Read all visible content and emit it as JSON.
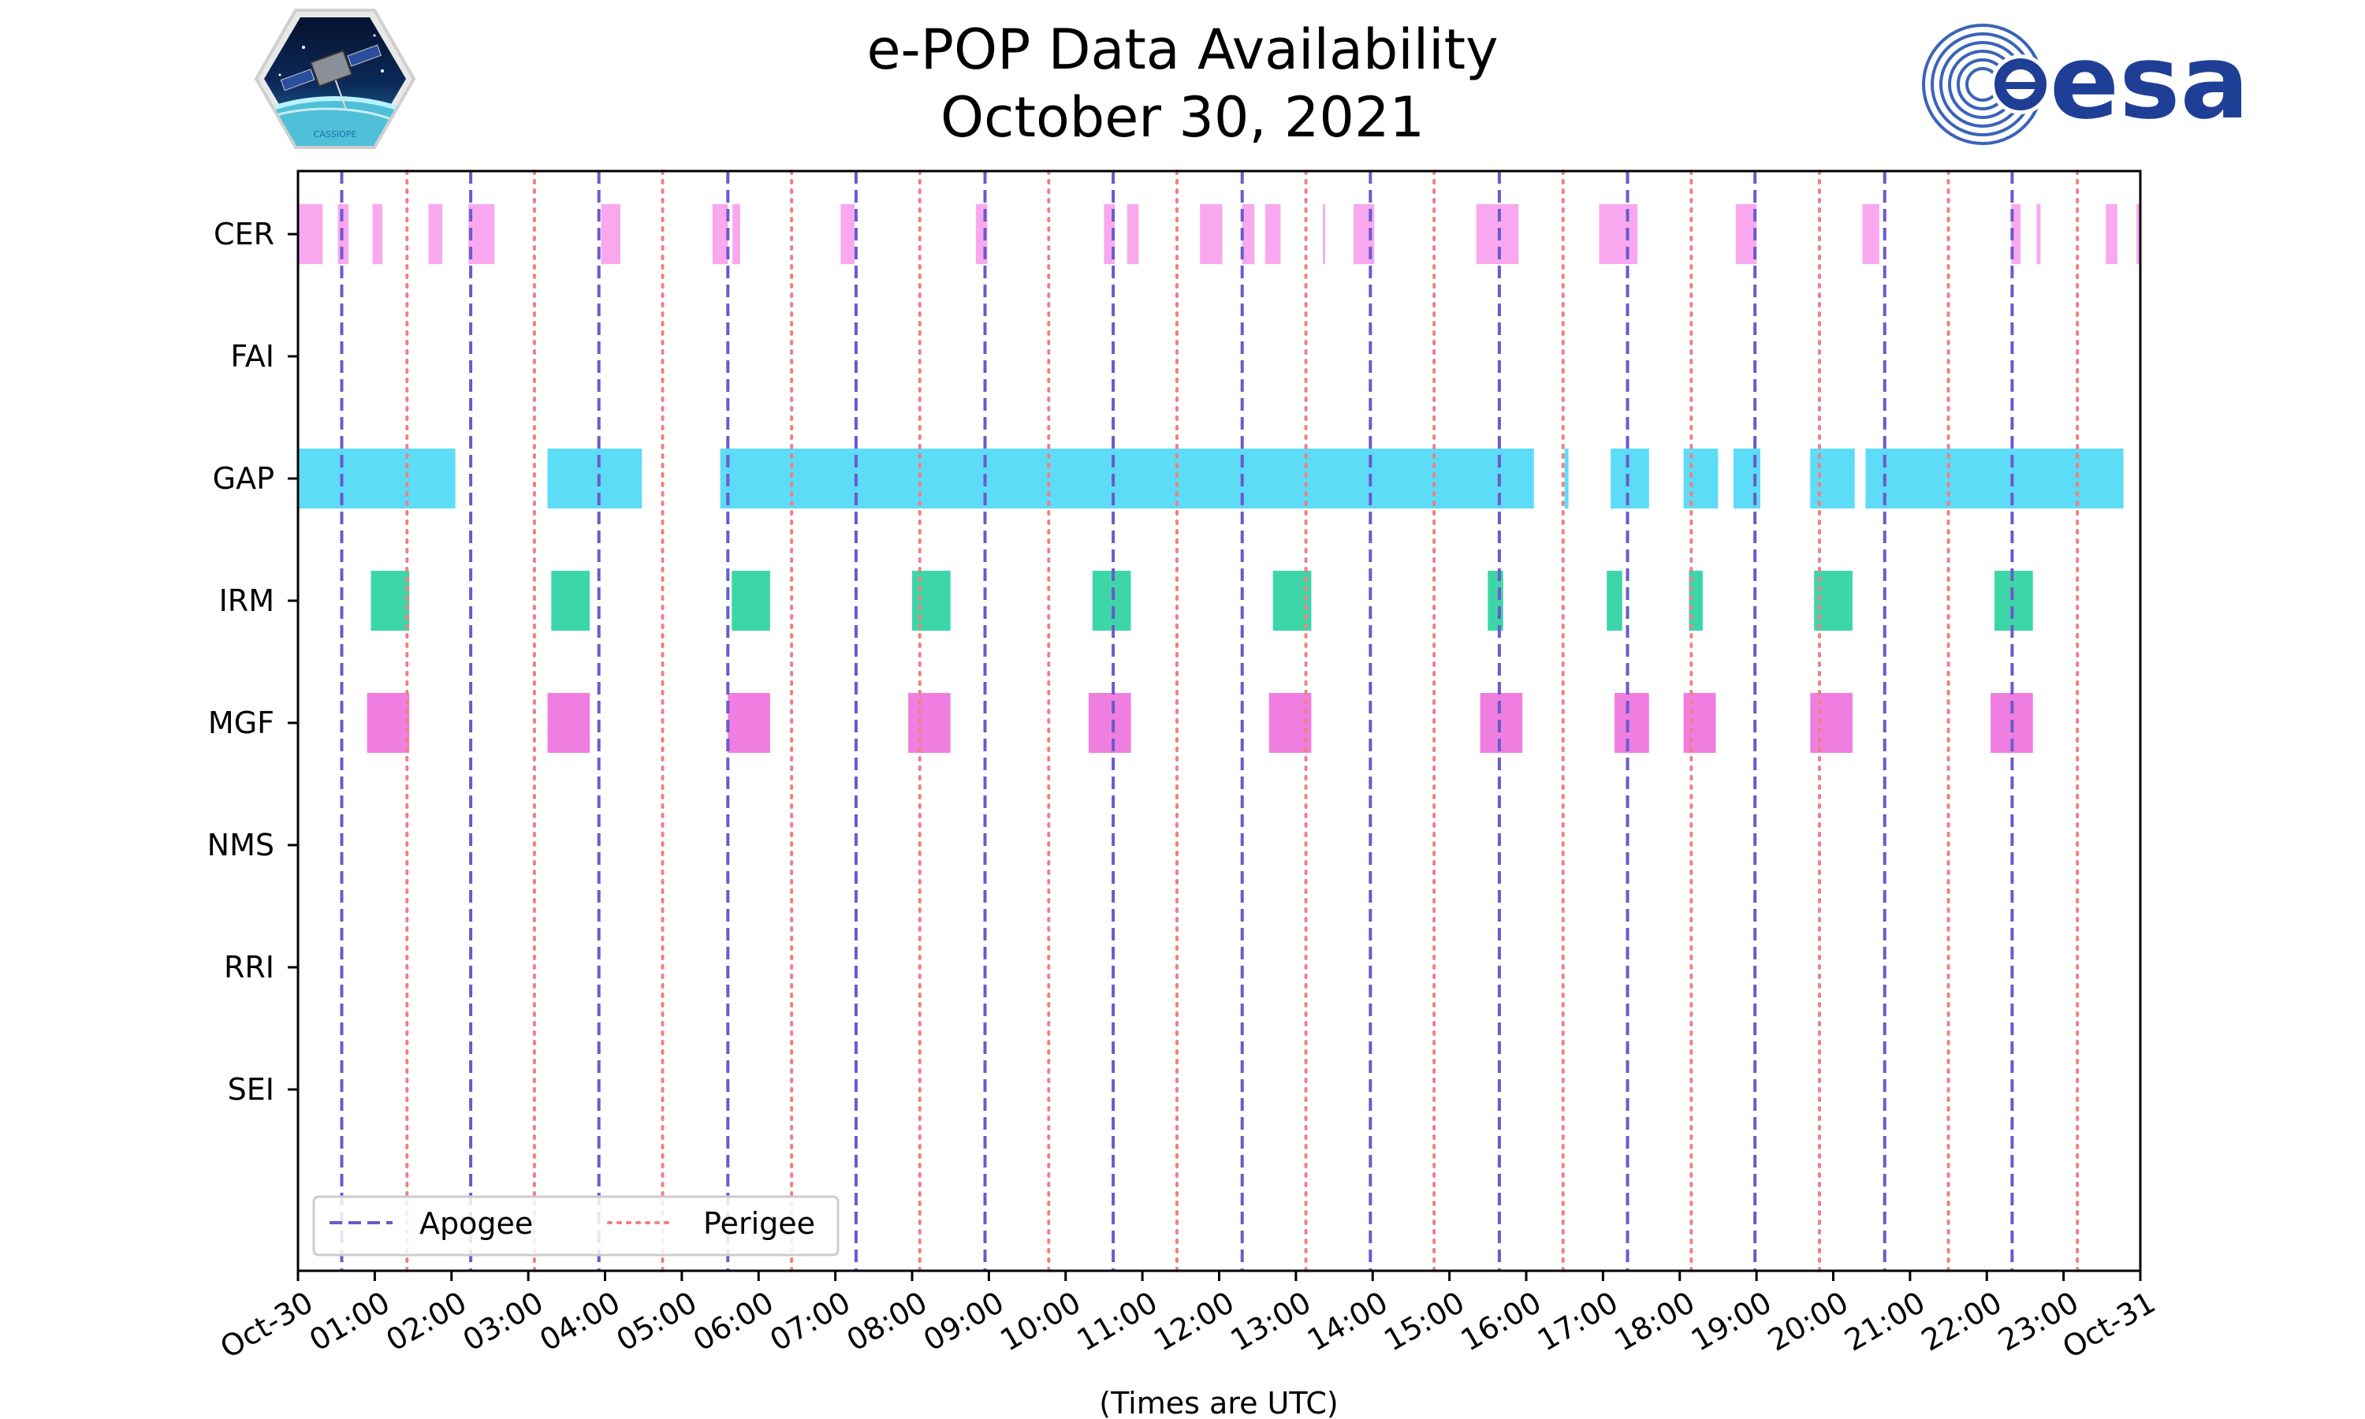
{
  "title": {
    "line1": "e-POP Data Availability",
    "line2": "October 30, 2021"
  },
  "logos": {
    "left": {
      "icon": "cassiope-mission-patch",
      "text": "CASSIOPE"
    },
    "right": {
      "icon": "esa-logo",
      "text": "esa"
    }
  },
  "colors": {
    "CER": "#f9a8f0",
    "GAP": "#5ddcf8",
    "IRM": "#3dd6a8",
    "MGF": "#f07ee0",
    "apogee": "#6a5acd",
    "perigee": "#f08080"
  },
  "chart_data": {
    "type": "timeline",
    "title": "e-POP Data Availability October 30, 2021",
    "xlabel": "(Times are UTC)",
    "ylabel": "",
    "xlim": [
      0,
      24
    ],
    "x_unit": "hours UTC",
    "x_tick_labels": [
      "Oct-30",
      "01:00",
      "02:00",
      "03:00",
      "04:00",
      "05:00",
      "06:00",
      "07:00",
      "08:00",
      "09:00",
      "10:00",
      "11:00",
      "12:00",
      "13:00",
      "14:00",
      "15:00",
      "16:00",
      "17:00",
      "18:00",
      "19:00",
      "20:00",
      "21:00",
      "22:00",
      "23:00",
      "Oct-31"
    ],
    "instruments": [
      "CER",
      "FAI",
      "GAP",
      "IRM",
      "MGF",
      "NMS",
      "RRI",
      "SEI"
    ],
    "series": [
      {
        "name": "CER",
        "intervals": [
          [
            0.0,
            0.32
          ],
          [
            0.52,
            0.66
          ],
          [
            0.97,
            1.1
          ],
          [
            1.7,
            1.88
          ],
          [
            2.22,
            2.56
          ],
          [
            3.95,
            4.2
          ],
          [
            5.4,
            5.6
          ],
          [
            5.66,
            5.76
          ],
          [
            7.07,
            7.25
          ],
          [
            8.83,
            8.98
          ],
          [
            10.5,
            10.64
          ],
          [
            10.8,
            10.95
          ],
          [
            11.75,
            12.04
          ],
          [
            12.3,
            12.46
          ],
          [
            12.6,
            12.8
          ],
          [
            13.35,
            13.38
          ],
          [
            13.75,
            14.02
          ],
          [
            15.35,
            15.9
          ],
          [
            16.95,
            17.45
          ],
          [
            18.73,
            19.0
          ],
          [
            20.38,
            20.6
          ],
          [
            22.32,
            22.44
          ],
          [
            22.65,
            22.7
          ],
          [
            23.55,
            23.7
          ],
          [
            23.95,
            24.0
          ]
        ]
      },
      {
        "name": "FAI",
        "intervals": []
      },
      {
        "name": "GAP",
        "intervals": [
          [
            0.0,
            2.05
          ],
          [
            3.25,
            4.48
          ],
          [
            5.5,
            16.1
          ],
          [
            16.5,
            16.55
          ],
          [
            17.1,
            17.6
          ],
          [
            18.05,
            18.5
          ],
          [
            18.7,
            19.05
          ],
          [
            19.7,
            20.28
          ],
          [
            20.42,
            23.78
          ]
        ]
      },
      {
        "name": "IRM",
        "intervals": [
          [
            0.95,
            1.45
          ],
          [
            3.3,
            3.8
          ],
          [
            5.65,
            6.15
          ],
          [
            8.0,
            8.5
          ],
          [
            10.35,
            10.85
          ],
          [
            12.7,
            13.2
          ],
          [
            15.5,
            15.7
          ],
          [
            17.05,
            17.25
          ],
          [
            18.12,
            18.3
          ],
          [
            19.75,
            20.25
          ],
          [
            22.1,
            22.6
          ]
        ]
      },
      {
        "name": "MGF",
        "intervals": [
          [
            0.9,
            1.45
          ],
          [
            3.25,
            3.8
          ],
          [
            5.6,
            6.15
          ],
          [
            7.95,
            8.5
          ],
          [
            10.3,
            10.85
          ],
          [
            12.65,
            13.2
          ],
          [
            15.4,
            15.95
          ],
          [
            17.15,
            17.6
          ],
          [
            18.05,
            18.47
          ],
          [
            19.7,
            20.25
          ],
          [
            22.05,
            22.6
          ]
        ]
      },
      {
        "name": "NMS",
        "intervals": []
      },
      {
        "name": "RRI",
        "intervals": []
      },
      {
        "name": "SEI",
        "intervals": []
      }
    ],
    "apogee_times": [
      0.57,
      2.25,
      3.92,
      5.6,
      7.27,
      8.95,
      10.62,
      12.3,
      13.97,
      15.65,
      17.32,
      18.98,
      20.67,
      22.33
    ],
    "perigee_times": [
      1.42,
      3.08,
      4.75,
      6.43,
      8.1,
      9.78,
      11.45,
      13.13,
      14.8,
      16.48,
      18.15,
      19.82,
      21.5,
      23.18
    ],
    "legend": {
      "placement": "lower-left",
      "entries": [
        "Apogee",
        "Perigee"
      ]
    }
  }
}
